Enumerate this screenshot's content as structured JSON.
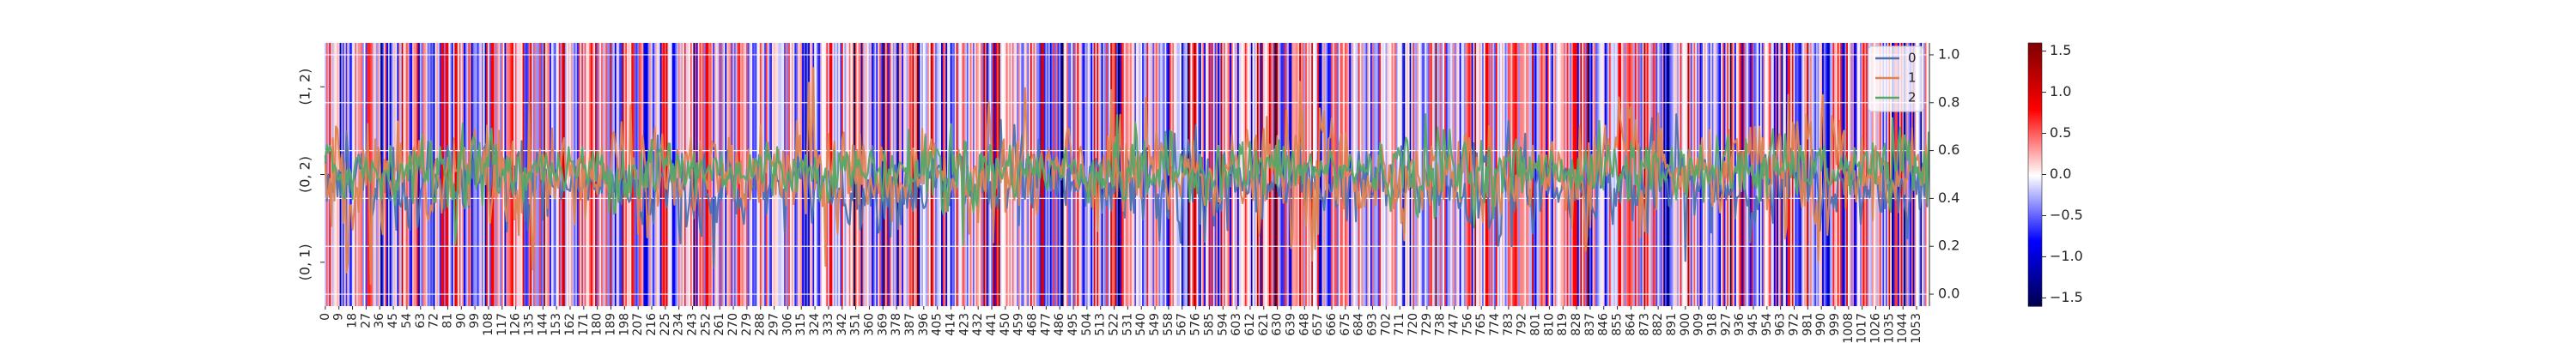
{
  "chart_data": {
    "type": "heatmap",
    "title": "",
    "heatmap": {
      "row_labels": [
        "(1, 2)",
        "(0, 2)",
        "(0, 1)"
      ],
      "n_columns": 1062,
      "x_tick_labels": [
        "0",
        "9",
        "18",
        "27",
        "36",
        "45",
        "54",
        "63",
        "72",
        "81",
        "90",
        "99",
        "108",
        "117",
        "126",
        "135",
        "144",
        "153",
        "162",
        "171",
        "180",
        "189",
        "198",
        "207",
        "216",
        "225",
        "234",
        "243",
        "252",
        "261",
        "270",
        "279",
        "288",
        "297",
        "306",
        "315",
        "324",
        "333",
        "342",
        "351",
        "360",
        "369",
        "378",
        "387",
        "396",
        "405",
        "414",
        "423",
        "432",
        "441",
        "450",
        "459",
        "468",
        "477",
        "486",
        "495",
        "504",
        "513",
        "522",
        "531",
        "540",
        "549",
        "558",
        "567",
        "576",
        "585",
        "594",
        "603",
        "612",
        "621",
        "630",
        "639",
        "648",
        "657",
        "666",
        "675",
        "684",
        "693",
        "702",
        "711",
        "720",
        "729",
        "738",
        "747",
        "756",
        "765",
        "774",
        "783",
        "792",
        "801",
        "810",
        "819",
        "828",
        "837",
        "846",
        "855",
        "864",
        "873",
        "882",
        "891",
        "900",
        "909",
        "918",
        "927",
        "936",
        "945",
        "954",
        "963",
        "972",
        "981",
        "990",
        "999",
        "1008",
        "1017",
        "1026",
        "1035",
        "1044",
        "1053"
      ],
      "colormap": "seismic",
      "vmin": -1.6,
      "vmax": 1.6,
      "colorbar_ticks": [
        "1.5",
        "1.0",
        "0.5",
        "0.0",
        "−0.5",
        "−1.0",
        "−1.5"
      ],
      "colorbar_tick_values": [
        1.5,
        1.0,
        0.5,
        0.0,
        -0.5,
        -1.0,
        -1.5
      ]
    },
    "lines": {
      "y_axis_side": "right",
      "ylim": [
        -0.05,
        1.05
      ],
      "y_ticks": [
        "0.0",
        "0.2",
        "0.4",
        "0.6",
        "0.8",
        "1.0"
      ],
      "y_tick_values": [
        0.0,
        0.2,
        0.4,
        0.6,
        0.8,
        1.0
      ],
      "n_points": 1062,
      "series": [
        {
          "name": "0",
          "color": "#4c72b0",
          "center": 0.45,
          "spread": 0.13
        },
        {
          "name": "1",
          "color": "#dd8452",
          "center": 0.5,
          "spread": 0.16
        },
        {
          "name": "2",
          "color": "#55a868",
          "center": 0.52,
          "spread": 0.1
        }
      ],
      "legend_position": "top-right"
    }
  }
}
